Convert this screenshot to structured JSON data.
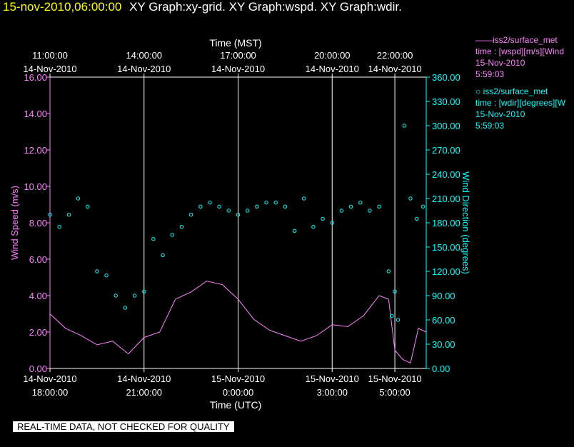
{
  "header": {
    "datetime": "15-nov-2010,06:00:00",
    "titles": "XY Graph:xy-grid.  XY Graph:wspd.  XY Graph:wdir."
  },
  "legend": [
    {
      "line1": "——iss2/surface_met",
      "line2": "time : [wspd][m/s][Wind",
      "line3": "15-Nov-2010",
      "line4": "5:59:03",
      "color": "#ff80ff"
    },
    {
      "line1": "○ iss2/surface_met",
      "line2": "time : [wdir][degrees][W",
      "line3": "15-Nov-2010",
      "line4": "5:59:03",
      "color": "#00ffff"
    }
  ],
  "disclaimer": "REAL-TIME DATA, NOT CHECKED FOR QUALITY",
  "chart_data": {
    "type": "line",
    "title": "",
    "top_axis": {
      "label": "Time (MST)",
      "ticks": [
        {
          "time": "11:00:00",
          "date": "14-Nov-2010",
          "utc_hours": 18.0
        },
        {
          "time": "14:00:00",
          "date": "14-Nov-2010",
          "utc_hours": 21.0
        },
        {
          "time": "17:00:00",
          "date": "14-Nov-2010",
          "utc_hours": 24.0
        },
        {
          "time": "20:00:00",
          "date": "14-Nov-2010",
          "utc_hours": 27.0
        },
        {
          "time": "22:00:00",
          "date": "14-Nov-2010",
          "utc_hours": 29.0
        }
      ]
    },
    "bottom_axis": {
      "label": "Time (UTC)",
      "ticks": [
        {
          "date": "14-Nov-2010",
          "time": "18:00:00",
          "utc_hours": 18.0
        },
        {
          "date": "14-Nov-2010",
          "time": "21:00:00",
          "utc_hours": 21.0
        },
        {
          "date": "15-Nov-2010",
          "time": "0:00:00",
          "utc_hours": 24.0
        },
        {
          "date": "15-Nov-2010",
          "time": "3:00:00",
          "utc_hours": 27.0
        },
        {
          "date": "15-Nov-2010",
          "time": "5:00:00",
          "utc_hours": 29.0
        }
      ],
      "range_utc_hours": [
        18.0,
        30.0
      ]
    },
    "left_axis": {
      "label": "Wind Speed (m/s)",
      "ylim": [
        0,
        16
      ],
      "ticks": [
        "0.00",
        "2.00",
        "4.00",
        "6.00",
        "8.00",
        "10.00",
        "12.00",
        "14.00",
        "16.00"
      ],
      "color": "#ff80ff"
    },
    "right_axis": {
      "label": "Wind Direction (degrees)",
      "ylim": [
        0,
        360
      ],
      "ticks": [
        "0.00",
        "30.00",
        "60.00",
        "90.00",
        "120.00",
        "150.00",
        "180.00",
        "210.00",
        "240.00",
        "270.00",
        "300.00",
        "330.00",
        "360.00"
      ],
      "color": "#00ffff"
    },
    "vertical_grid": true,
    "series": [
      {
        "name": "wspd",
        "style": "line",
        "color": "#ff80ff",
        "x_utc_hours": [
          18.0,
          18.5,
          19.0,
          19.5,
          20.0,
          20.5,
          21.0,
          21.5,
          22.0,
          22.5,
          23.0,
          23.5,
          24.0,
          24.5,
          25.0,
          25.5,
          26.0,
          26.5,
          27.0,
          27.5,
          28.0,
          28.5,
          28.8,
          29.0,
          29.25,
          29.5,
          29.75,
          30.0
        ],
        "y": [
          3.0,
          2.2,
          1.8,
          1.3,
          1.5,
          0.8,
          1.7,
          2.0,
          3.8,
          4.2,
          4.8,
          4.6,
          3.8,
          2.7,
          2.1,
          1.8,
          1.5,
          1.8,
          2.4,
          2.3,
          2.9,
          4.0,
          3.8,
          1.0,
          0.5,
          0.3,
          2.2,
          2.0
        ]
      },
      {
        "name": "wdir",
        "style": "markers",
        "color": "#00ffff",
        "x_utc_hours": [
          18.0,
          18.3,
          18.6,
          18.9,
          19.2,
          19.5,
          19.8,
          20.1,
          20.4,
          20.7,
          21.0,
          21.3,
          21.6,
          21.9,
          22.2,
          22.5,
          22.8,
          23.1,
          23.4,
          23.7,
          24.0,
          24.3,
          24.6,
          24.9,
          25.2,
          25.5,
          25.8,
          26.1,
          26.4,
          26.7,
          27.0,
          27.3,
          27.6,
          27.9,
          28.2,
          28.5,
          28.8,
          28.9,
          29.0,
          29.1,
          29.3,
          29.5,
          29.7,
          29.9
        ],
        "y": [
          190,
          175,
          190,
          210,
          200,
          120,
          115,
          90,
          75,
          90,
          95,
          160,
          140,
          165,
          175,
          190,
          200,
          205,
          200,
          195,
          190,
          195,
          200,
          205,
          205,
          200,
          170,
          210,
          175,
          185,
          180,
          195,
          200,
          205,
          195,
          200,
          120,
          65,
          95,
          60,
          300,
          210,
          185,
          200
        ]
      }
    ]
  }
}
